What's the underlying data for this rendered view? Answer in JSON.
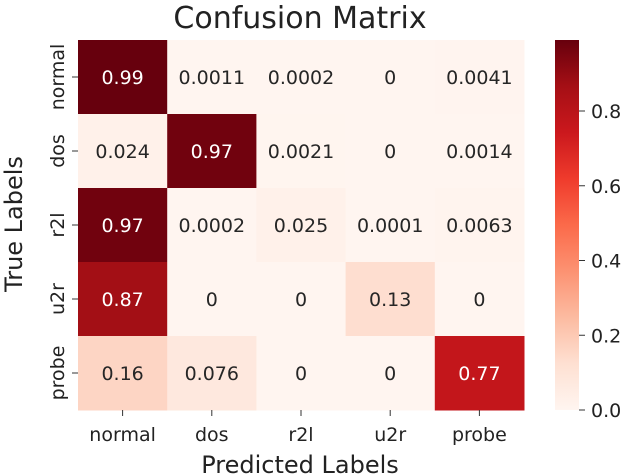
{
  "chart_data": {
    "type": "heatmap",
    "title": "Confusion Matrix",
    "xlabel": "Predicted Labels",
    "ylabel": "True Labels",
    "x_categories": [
      "normal",
      "dos",
      "r2l",
      "u2r",
      "probe"
    ],
    "y_categories": [
      "normal",
      "dos",
      "r2l",
      "u2r",
      "probe"
    ],
    "values": [
      [
        0.99,
        0.0011,
        0.0002,
        0,
        0.0041
      ],
      [
        0.024,
        0.97,
        0.0021,
        0,
        0.0014
      ],
      [
        0.97,
        0.0002,
        0.025,
        0.0001,
        0.0063
      ],
      [
        0.87,
        0,
        0,
        0.13,
        0
      ],
      [
        0.16,
        0.076,
        0,
        0,
        0.77
      ]
    ],
    "cell_labels": [
      [
        "0.99",
        "0.0011",
        "0.0002",
        "0",
        "0.0041"
      ],
      [
        "0.024",
        "0.97",
        "0.0021",
        "0",
        "0.0014"
      ],
      [
        "0.97",
        "0.0002",
        "0.025",
        "0.0001",
        "0.0063"
      ],
      [
        "0.87",
        "0",
        "0",
        "0.13",
        "0"
      ],
      [
        "0.16",
        "0.076",
        "0",
        "0",
        "0.77"
      ]
    ],
    "colormap": "Reds",
    "colors": {
      "low": "#fff5f0",
      "high": "#67000d"
    },
    "colorbar": {
      "range": [
        0,
        0.99
      ],
      "ticks": [
        0.0,
        0.2,
        0.4,
        0.6,
        0.8
      ],
      "tick_labels": [
        "0.0",
        "0.2",
        "0.4",
        "0.6",
        "0.8"
      ]
    }
  }
}
